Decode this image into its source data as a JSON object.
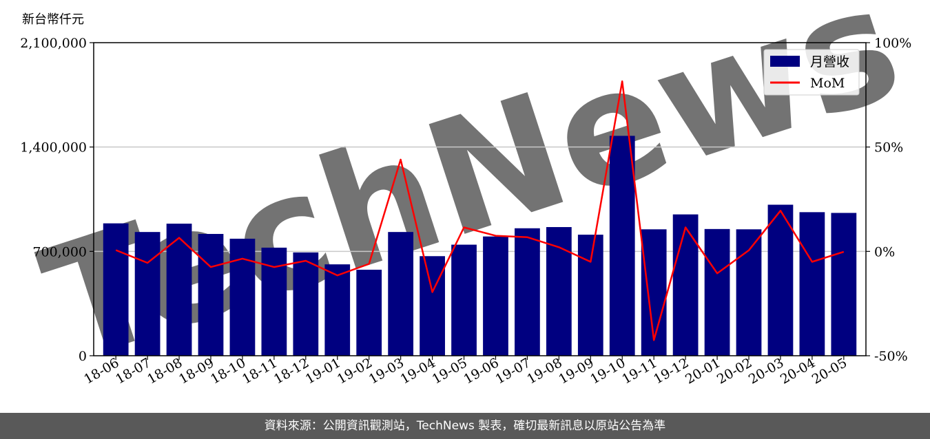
{
  "chart_data": {
    "type": "bar",
    "unit_label": "新台幣仟元",
    "categories": [
      "18-06",
      "18-07",
      "18-08",
      "18-09",
      "18-10",
      "18-11",
      "18-12",
      "19-01",
      "19-02",
      "19-03",
      "19-04",
      "19-05",
      "19-06",
      "19-07",
      "19-08",
      "19-09",
      "19-10",
      "19-11",
      "19-12",
      "20-01",
      "20-02",
      "20-03",
      "20-04",
      "20-05"
    ],
    "series": [
      {
        "name": "月營收",
        "kind": "bar",
        "axis": "left",
        "color": "#000080",
        "values": [
          888000,
          830000,
          886000,
          817000,
          785000,
          725000,
          693000,
          613000,
          577000,
          830000,
          668000,
          745000,
          800000,
          855000,
          863000,
          812000,
          1475000,
          848000,
          948000,
          850000,
          848000,
          1013000,
          963000,
          958000
        ]
      },
      {
        "name": "MoM",
        "kind": "line",
        "axis": "right",
        "color": "#ff0000",
        "values": [
          0.6,
          -5.5,
          6.5,
          -7.5,
          -3.5,
          -7.5,
          -4.5,
          -11.5,
          -6.0,
          44.0,
          -19.5,
          11.5,
          7.5,
          6.8,
          2.0,
          -5.0,
          81.5,
          -42.5,
          11.5,
          -10.5,
          0.5,
          19.5,
          -5.0,
          -0.2
        ]
      }
    ],
    "y_left": {
      "range": [
        0,
        2100000
      ],
      "ticks": [
        {
          "v": 0,
          "label": "0"
        },
        {
          "v": 700000,
          "label": "700,000"
        },
        {
          "v": 1400000,
          "label": "1,400,000"
        },
        {
          "v": 2100000,
          "label": "2,100,000"
        }
      ]
    },
    "y_right": {
      "range": [
        -50,
        100
      ],
      "ticks": [
        {
          "v": -50,
          "label": "-50%"
        },
        {
          "v": 0,
          "label": "0%"
        },
        {
          "v": 50,
          "label": "50%"
        },
        {
          "v": 100,
          "label": "100%"
        }
      ]
    },
    "grid": true,
    "legend_position": "top-right",
    "watermark": "TechNews"
  },
  "footer": {
    "text": "資料來源：公開資訊觀測站，TechNews 製表，確切最新訊息以原站公告為準"
  }
}
